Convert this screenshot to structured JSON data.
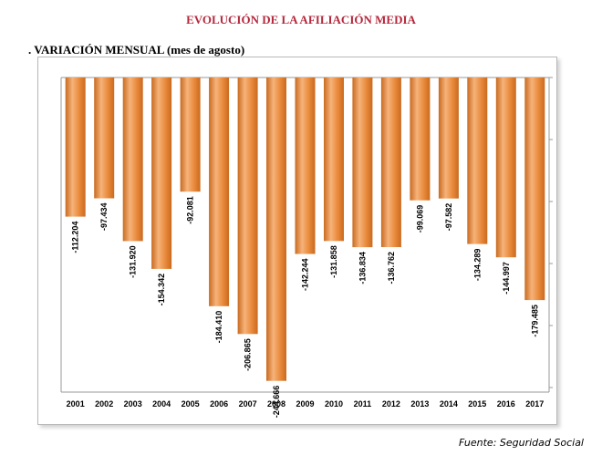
{
  "header": {
    "title": "EVOLUCIÓN DE LA AFILIACIÓN MEDIA",
    "subtitle": ". VARIACIÓN MENSUAL (mes de agosto)"
  },
  "footer": {
    "source": "Fuente: Seguridad Social"
  },
  "colors": {
    "title": "#b5283c",
    "bar": "#e8893a",
    "bar_light": "#f6b37a",
    "bar_dark": "#c96a20"
  },
  "chart_data": {
    "type": "bar",
    "title": "",
    "xlabel": "",
    "ylabel": "",
    "categories": [
      "2001",
      "2002",
      "2003",
      "2004",
      "2005",
      "2006",
      "2007",
      "2008",
      "2009",
      "2010",
      "2011",
      "2012",
      "2013",
      "2014",
      "2015",
      "2016",
      "2017"
    ],
    "values": [
      -112204,
      -97434,
      -131920,
      -154342,
      -92081,
      -184410,
      -206865,
      -244666,
      -142244,
      -131858,
      -136834,
      -136762,
      -99069,
      -97582,
      -134289,
      -144997,
      -179485
    ],
    "value_labels": [
      "-112.204",
      "-97.434",
      "-131.920",
      "-154.342",
      "-92.081",
      "-184.410",
      "-206.865",
      "-244.666",
      "-142.244",
      "-131.858",
      "-136.834",
      "-136.762",
      "-99.069",
      "-97.582",
      "-134.289",
      "-144.997",
      "-179.485"
    ],
    "ylim": [
      -250000,
      0
    ],
    "grid": false,
    "legend": "none"
  }
}
